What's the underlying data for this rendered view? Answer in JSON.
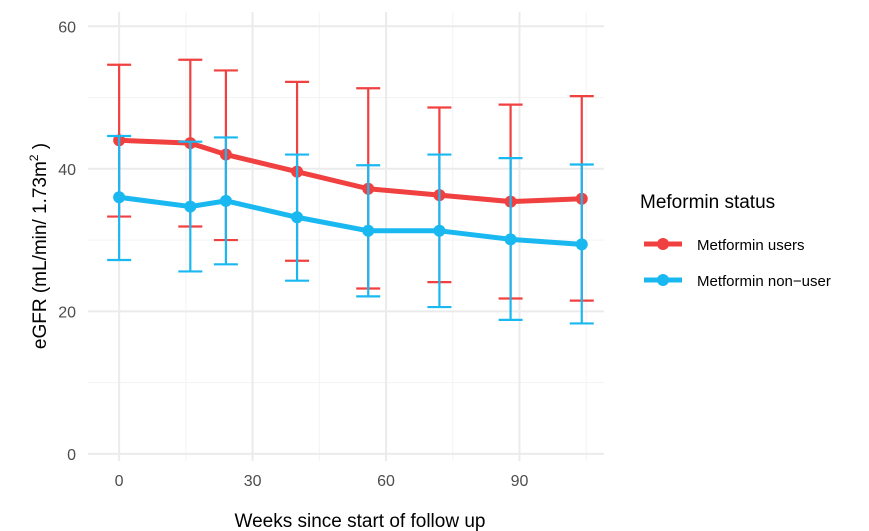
{
  "chart_data": {
    "type": "line",
    "xlabel": "Weeks since start of follow up",
    "ylabel": "eGFR (mL/min/ 1.73m",
    "ylabel_sup": "2",
    "ylabel_close": " )",
    "xlim": [
      -7,
      109
    ],
    "ylim": [
      -1,
      62
    ],
    "x_ticks": [
      0,
      30,
      60,
      90
    ],
    "y_ticks": [
      0,
      20,
      40,
      60
    ],
    "grid": true,
    "legend": {
      "title": "Meformin status",
      "position": "right"
    },
    "series": [
      {
        "name": "Metformin users",
        "color": "#f04040",
        "x": [
          0,
          16,
          24,
          40,
          56,
          72,
          88,
          104
        ],
        "y": [
          44.0,
          43.6,
          42.0,
          39.6,
          37.2,
          36.3,
          35.4,
          35.8
        ],
        "y_lower": [
          33.3,
          31.9,
          30.0,
          27.1,
          23.2,
          24.1,
          21.8,
          21.5
        ],
        "y_upper": [
          54.6,
          55.3,
          53.8,
          52.2,
          51.3,
          48.6,
          49.0,
          50.2
        ]
      },
      {
        "name": "Metformin non−user",
        "color": "#1ab8f0",
        "x": [
          0,
          16,
          24,
          40,
          56,
          72,
          88,
          104
        ],
        "y": [
          36.0,
          34.7,
          35.5,
          33.2,
          31.3,
          31.3,
          30.1,
          29.4
        ],
        "y_lower": [
          27.2,
          25.6,
          26.6,
          24.3,
          22.1,
          20.6,
          18.8,
          18.3
        ],
        "y_upper": [
          44.6,
          43.8,
          44.4,
          42.0,
          40.5,
          42.0,
          41.5,
          40.6
        ]
      }
    ]
  }
}
